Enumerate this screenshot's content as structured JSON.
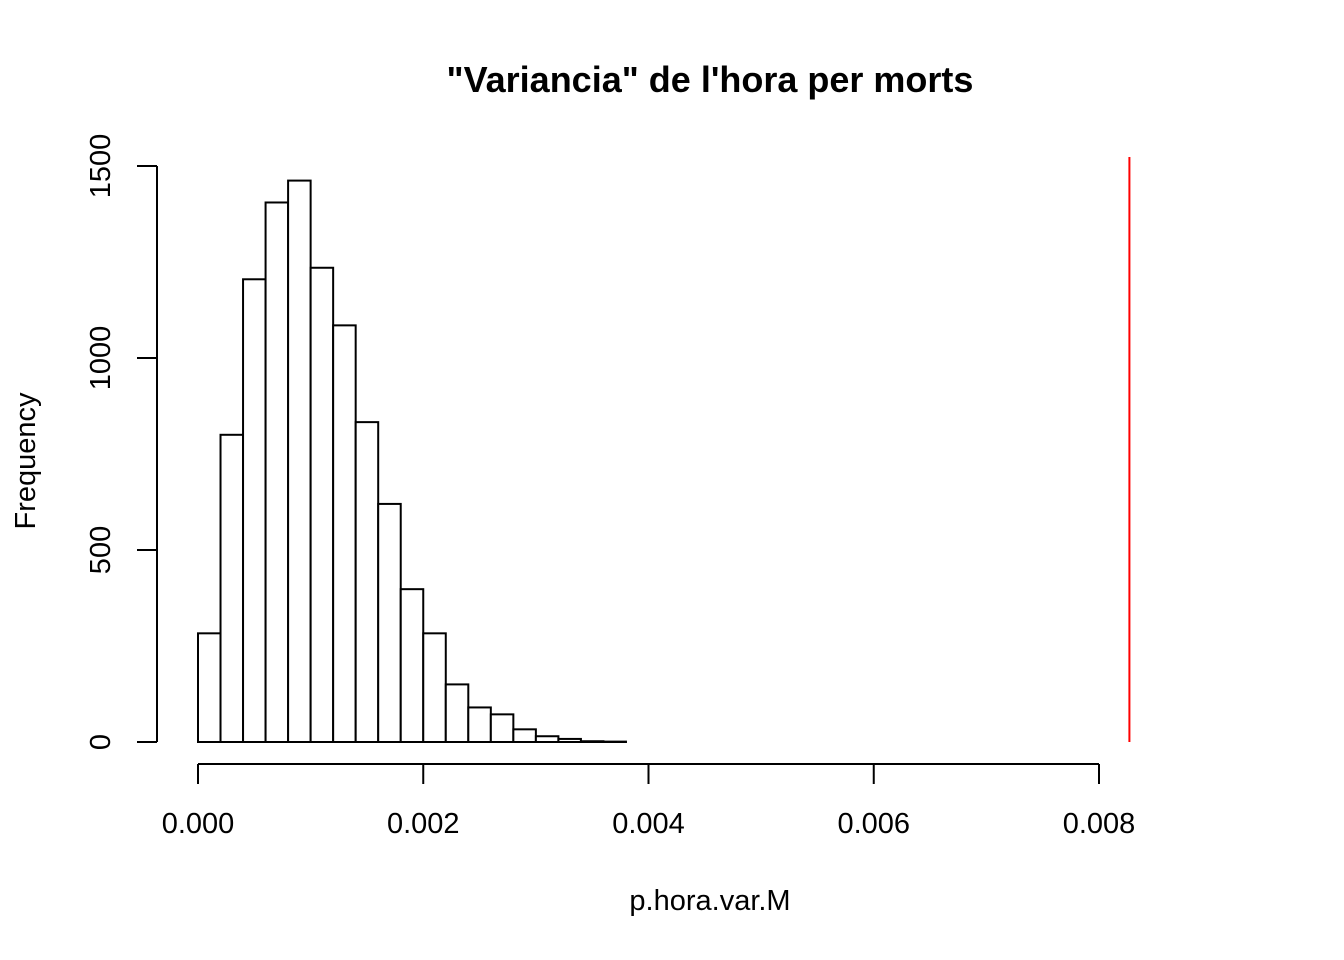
{
  "chart_data": {
    "type": "bar",
    "title": "\"Variancia\" de l'hora per morts",
    "xlabel": "p.hora.var.M",
    "ylabel": "Frequency",
    "bin_edges": [
      0.0,
      0.0002,
      0.0004,
      0.0006,
      0.0008,
      0.001,
      0.0012,
      0.0014,
      0.0016,
      0.0018,
      0.002,
      0.0022,
      0.0024,
      0.0026,
      0.0028,
      0.003,
      0.0032,
      0.0034,
      0.0036,
      0.0038
    ],
    "values": [
      283,
      800,
      1205,
      1405,
      1462,
      1235,
      1085,
      833,
      620,
      398,
      283,
      150,
      90,
      72,
      33,
      15,
      8,
      2,
      1
    ],
    "xlim": [
      0.0,
      0.0083
    ],
    "ylim": [
      0,
      1500
    ],
    "x_ticks": [
      0.0,
      0.002,
      0.004,
      0.006,
      0.008
    ],
    "x_tick_labels": [
      "0.000",
      "0.002",
      "0.004",
      "0.006",
      "0.008"
    ],
    "y_ticks": [
      0,
      500,
      1000,
      1500
    ],
    "y_tick_labels": [
      "0",
      "500",
      "1000",
      "1500"
    ],
    "reference_line": {
      "x": 0.00827,
      "color": "#ff0000"
    },
    "grid": false
  }
}
